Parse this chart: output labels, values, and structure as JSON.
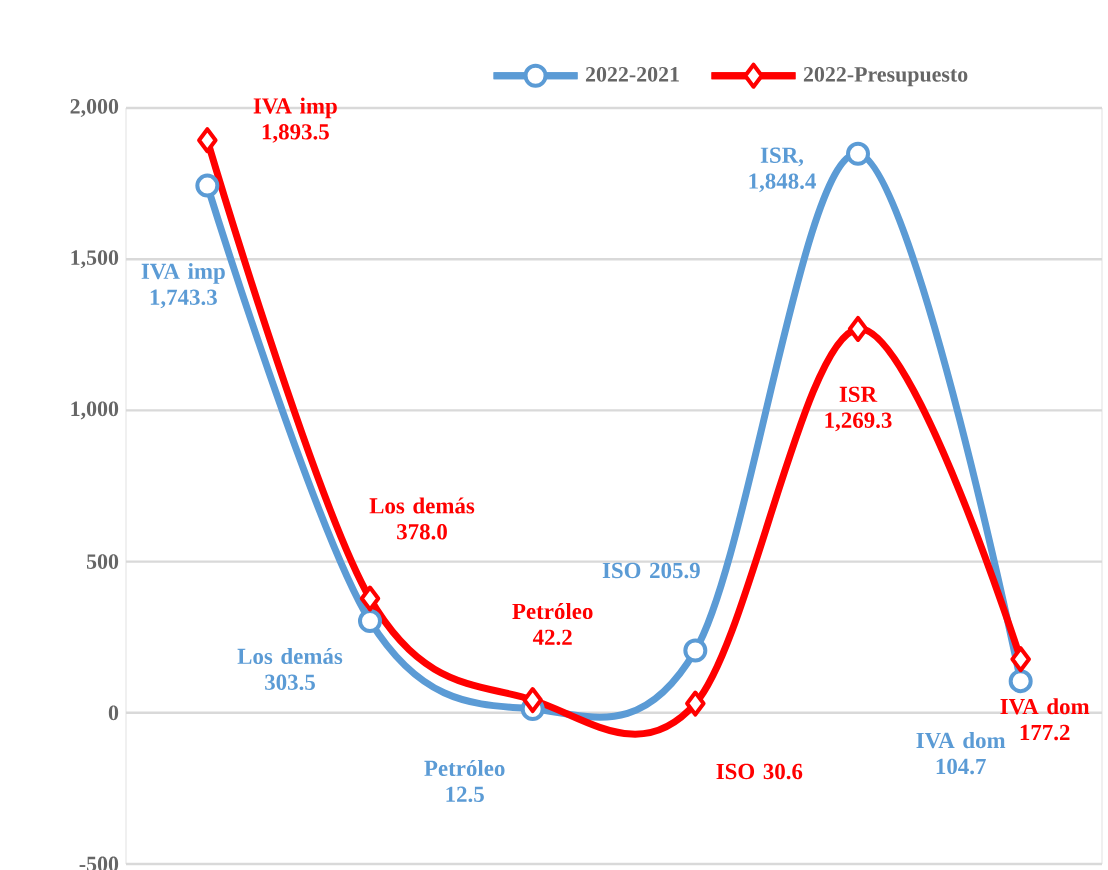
{
  "chart_data": {
    "type": "line",
    "categories": [
      null,
      null,
      null,
      null,
      null,
      null
    ],
    "series": [
      {
        "name": "2022-2021",
        "color": "#5b9bd5",
        "marker": "circle",
        "values": [
          1743.3,
          303.5,
          12.5,
          205.9,
          1848.4,
          104.7
        ],
        "value_labels": [
          "IVA imp 1,743.3",
          "Los demás 303.5",
          "Petróleo 12.5",
          "ISO 205.9",
          "ISR, 1,848.4",
          "IVA dom 104.7"
        ]
      },
      {
        "name": "2022-Presupuesto",
        "color": "#ff0000",
        "marker": "diamond",
        "values": [
          1893.5,
          378.0,
          42.2,
          30.6,
          1269.3,
          177.2
        ],
        "value_labels": [
          "IVA imp 1,893.5",
          "Los demás 378.0",
          "Petróleo 42.2",
          "ISO 30.6",
          "ISR 1,269.3",
          "IVA dom 177.2"
        ]
      }
    ],
    "ylim": [
      -500,
      2000
    ],
    "yticks": [
      {
        "value": -500,
        "label": "-500"
      },
      {
        "value": 0,
        "label": "0"
      },
      {
        "value": 500,
        "label": "500"
      },
      {
        "value": 1000,
        "label": "1,000"
      },
      {
        "value": 1500,
        "label": "1,500"
      },
      {
        "value": 2000,
        "label": "2,000"
      }
    ],
    "grid": true,
    "legend": "top"
  }
}
